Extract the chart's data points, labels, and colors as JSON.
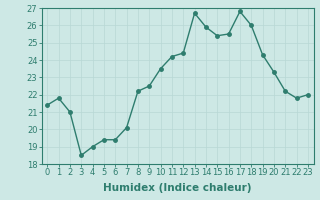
{
  "x": [
    0,
    1,
    2,
    3,
    4,
    5,
    6,
    7,
    8,
    9,
    10,
    11,
    12,
    13,
    14,
    15,
    16,
    17,
    18,
    19,
    20,
    21,
    22,
    23
  ],
  "y": [
    21.4,
    21.8,
    21.0,
    18.5,
    19.0,
    19.4,
    19.4,
    20.1,
    22.2,
    22.5,
    23.5,
    24.2,
    24.4,
    26.7,
    25.9,
    25.4,
    25.5,
    26.8,
    26.0,
    24.3,
    23.3,
    22.2,
    21.8,
    22.0
  ],
  "line_color": "#2e7d6e",
  "bg_color": "#cde8e5",
  "grid_color": "#b8d8d5",
  "xlabel": "Humidex (Indice chaleur)",
  "ylim": [
    18,
    27
  ],
  "yticks": [
    18,
    19,
    20,
    21,
    22,
    23,
    24,
    25,
    26,
    27
  ],
  "xticks": [
    0,
    1,
    2,
    3,
    4,
    5,
    6,
    7,
    8,
    9,
    10,
    11,
    12,
    13,
    14,
    15,
    16,
    17,
    18,
    19,
    20,
    21,
    22,
    23
  ],
  "marker": "o",
  "markersize": 2.5,
  "linewidth": 1.0,
  "xlabel_fontsize": 7.5,
  "tick_fontsize": 6.0
}
